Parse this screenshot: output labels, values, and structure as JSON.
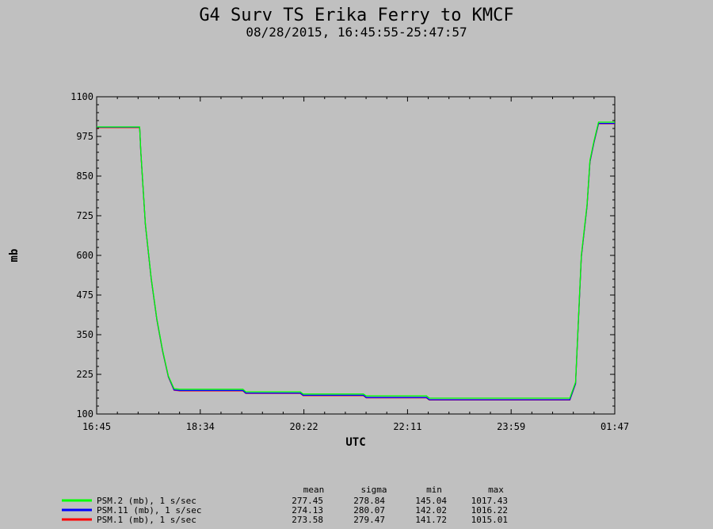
{
  "chart_data": {
    "type": "line",
    "title": "G4 Surv TS Erika Ferry to KMCF",
    "subtitle": "08/28/2015, 16:45:55-25:47:57",
    "xlabel": "UTC",
    "ylabel": "mb",
    "x_ticks": [
      "16:45",
      "18:34",
      "20:22",
      "22:11",
      "23:59",
      "01:47"
    ],
    "y_ticks": [
      100,
      225,
      350,
      475,
      600,
      725,
      850,
      975,
      1100
    ],
    "xlim_hours": [
      16.75,
      25.783
    ],
    "ylim": [
      100,
      1100
    ],
    "grid": false,
    "legend_position": "bottom-left",
    "stats_headers": [
      "mean",
      "sigma",
      "min",
      "max"
    ],
    "series": [
      {
        "name": "PSM.2 (mb), 1 s/sec",
        "color": "#00ff00",
        "stats": [
          "277.45",
          "278.84",
          "145.04",
          "1017.43"
        ],
        "points": [
          [
            16.75,
            1005
          ],
          [
            17.5,
            1005
          ],
          [
            17.52,
            930
          ],
          [
            17.6,
            700
          ],
          [
            17.7,
            530
          ],
          [
            17.8,
            400
          ],
          [
            17.9,
            300
          ],
          [
            18.0,
            220
          ],
          [
            18.1,
            180
          ],
          [
            18.2,
            178
          ],
          [
            18.8,
            178
          ],
          [
            19.3,
            178
          ],
          [
            19.35,
            170
          ],
          [
            20.3,
            170
          ],
          [
            20.35,
            163
          ],
          [
            21.4,
            163
          ],
          [
            21.45,
            157
          ],
          [
            22.5,
            157
          ],
          [
            22.55,
            150
          ],
          [
            24.05,
            150
          ],
          [
            25.0,
            150
          ],
          [
            25.1,
            200
          ],
          [
            25.2,
            600
          ],
          [
            25.3,
            760
          ],
          [
            25.35,
            900
          ],
          [
            25.42,
            960
          ],
          [
            25.5,
            1020
          ],
          [
            25.783,
            1020
          ]
        ]
      },
      {
        "name": "PSM.11 (mb), 1 s/sec",
        "color": "#0000ff",
        "stats": [
          "274.13",
          "280.07",
          "142.02",
          "1016.22"
        ],
        "points": [
          [
            16.75,
            1004
          ],
          [
            17.5,
            1004
          ],
          [
            17.52,
            928
          ],
          [
            17.6,
            698
          ],
          [
            17.7,
            528
          ],
          [
            17.8,
            398
          ],
          [
            17.9,
            298
          ],
          [
            18.0,
            218
          ],
          [
            18.1,
            176
          ],
          [
            18.2,
            174
          ],
          [
            18.8,
            174
          ],
          [
            19.3,
            174
          ],
          [
            19.35,
            166
          ],
          [
            20.3,
            166
          ],
          [
            20.35,
            159
          ],
          [
            21.4,
            159
          ],
          [
            21.45,
            152
          ],
          [
            22.5,
            152
          ],
          [
            22.55,
            145
          ],
          [
            24.05,
            145
          ],
          [
            25.0,
            145
          ],
          [
            25.1,
            196
          ],
          [
            25.2,
            596
          ],
          [
            25.3,
            756
          ],
          [
            25.35,
            896
          ],
          [
            25.42,
            956
          ],
          [
            25.5,
            1016
          ],
          [
            25.783,
            1016
          ]
        ]
      },
      {
        "name": "PSM.1 (mb), 1 s/sec",
        "color": "#ff0000",
        "stats": [
          "273.58",
          "279.47",
          "141.72",
          "1015.01"
        ],
        "points": [
          [
            16.75,
            1003
          ],
          [
            17.5,
            1003
          ],
          [
            17.52,
            927
          ],
          [
            17.6,
            697
          ],
          [
            17.7,
            527
          ],
          [
            17.8,
            397
          ],
          [
            17.9,
            297
          ],
          [
            18.0,
            217
          ],
          [
            18.1,
            175
          ],
          [
            18.2,
            173
          ],
          [
            18.8,
            173
          ],
          [
            19.3,
            173
          ],
          [
            19.35,
            165
          ],
          [
            20.3,
            165
          ],
          [
            20.35,
            158
          ],
          [
            21.4,
            158
          ],
          [
            21.45,
            151
          ],
          [
            22.5,
            151
          ],
          [
            22.55,
            144
          ],
          [
            24.05,
            144
          ],
          [
            25.0,
            144
          ],
          [
            25.1,
            195
          ],
          [
            25.2,
            595
          ],
          [
            25.3,
            755
          ],
          [
            25.35,
            895
          ],
          [
            25.42,
            955
          ],
          [
            25.5,
            1015
          ],
          [
            25.783,
            1015
          ]
        ]
      }
    ]
  }
}
